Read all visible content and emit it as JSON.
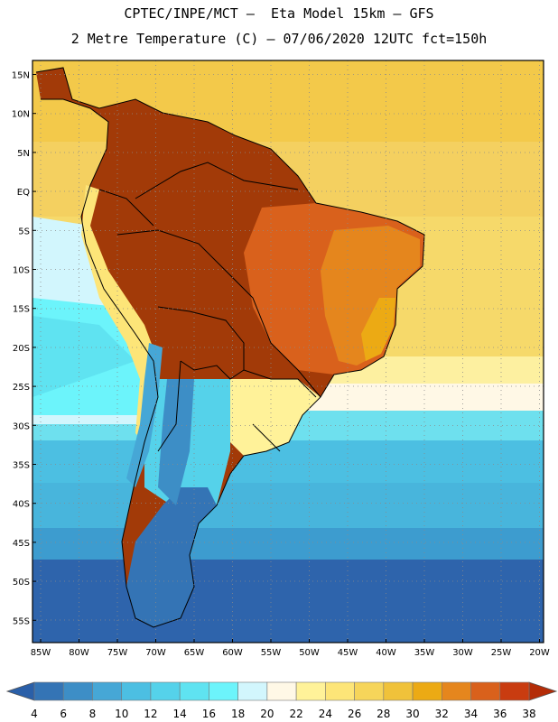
{
  "title": {
    "line1": "CPTEC/INPE/MCT –  Eta Model 15km – GFS",
    "line2": "2 Metre Temperature (C) – 07/06/2020 12UTC fct=150h"
  },
  "lat_labels": [
    "15N",
    "10N",
    "5N",
    "EQ",
    "5S",
    "10S",
    "15S",
    "20S",
    "25S",
    "30S",
    "35S",
    "40S",
    "45S",
    "50S",
    "55S"
  ],
  "lon_labels": [
    "85W",
    "80W",
    "75W",
    "70W",
    "65W",
    "60W",
    "55W",
    "50W",
    "45W",
    "40W",
    "35W",
    "30W",
    "25W",
    "20W"
  ],
  "colorbar": {
    "labels": [
      "4",
      "6",
      "8",
      "10",
      "12",
      "14",
      "16",
      "18",
      "20",
      "22",
      "24",
      "26",
      "28",
      "30",
      "32",
      "34",
      "36",
      "38"
    ],
    "colors": [
      "#2a5fa8",
      "#3474b5",
      "#3d8ec6",
      "#46a7d6",
      "#4cbfe2",
      "#55d2ea",
      "#5fe3f1",
      "#6cf4fb",
      "#d2f6fd",
      "#fff8e6",
      "#fff299",
      "#fde578",
      "#f6d55a",
      "#f0c23a",
      "#ecaa14",
      "#e5861d",
      "#d9611c",
      "#c93c10",
      "#b42c07"
    ]
  },
  "icons": {
    "left_arrow": "colorbar-left-arrow-icon",
    "right_arrow": "colorbar-right-arrow-icon"
  }
}
